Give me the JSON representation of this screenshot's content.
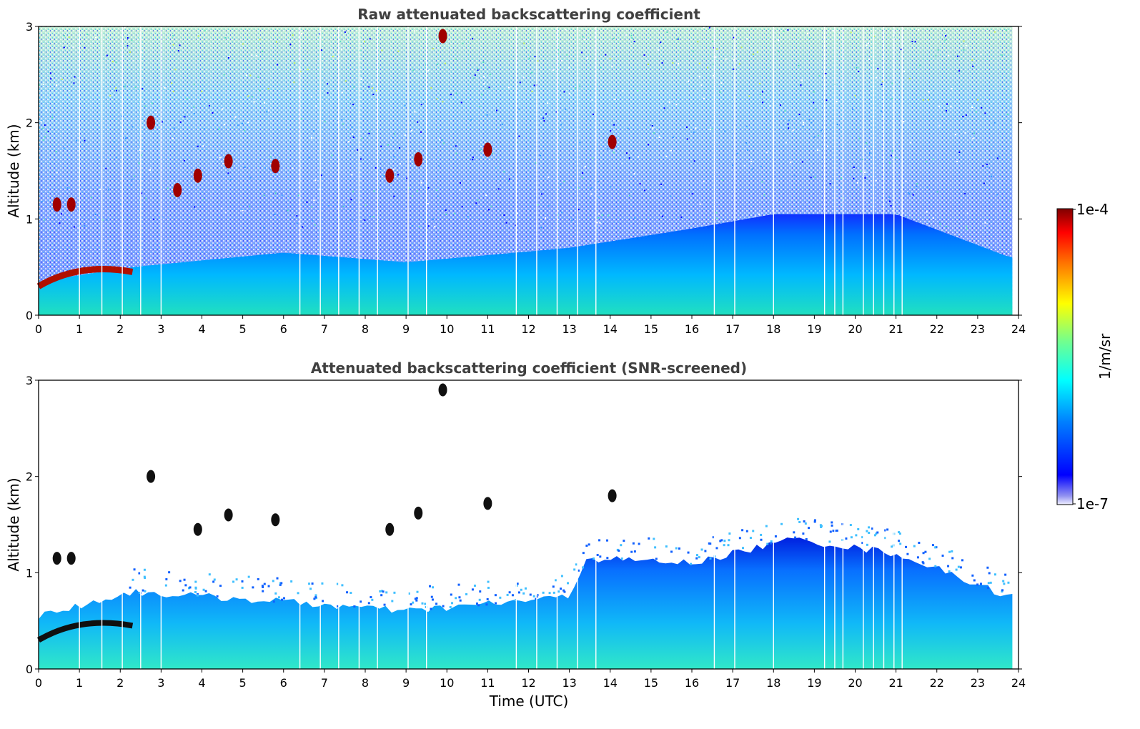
{
  "chart_data": [
    {
      "type": "heatmap",
      "title": "Raw attenuated backscattering coefficient",
      "xlabel": "",
      "ylabel": "Altitude (km)",
      "xlim": [
        0,
        24
      ],
      "ylim": [
        0,
        3
      ],
      "x_ticks": [
        "0",
        "1",
        "2",
        "3",
        "4",
        "5",
        "6",
        "7",
        "8",
        "9",
        "10",
        "11",
        "12",
        "13",
        "14",
        "15",
        "16",
        "17",
        "18",
        "19",
        "20",
        "21",
        "22",
        "23",
        "24"
      ],
      "y_ticks": [
        "0",
        "1",
        "2",
        "3"
      ],
      "data_end_time": 23.85,
      "boundary_layer_top_km": [
        {
          "t": 0,
          "h": 0.35
        },
        {
          "t": 2.3,
          "h": 0.5
        },
        {
          "t": 6,
          "h": 0.65
        },
        {
          "t": 9,
          "h": 0.55
        },
        {
          "t": 13,
          "h": 0.7
        },
        {
          "t": 16,
          "h": 0.9
        },
        {
          "t": 18,
          "h": 1.05
        },
        {
          "t": 21,
          "h": 1.05
        },
        {
          "t": 23.8,
          "h": 0.6
        }
      ],
      "clouds": [
        {
          "t": 0.45,
          "h": 1.15
        },
        {
          "t": 0.8,
          "h": 1.15
        },
        {
          "t": 2.75,
          "h": 2.0
        },
        {
          "t": 3.4,
          "h": 1.3
        },
        {
          "t": 3.9,
          "h": 1.45
        },
        {
          "t": 4.65,
          "h": 1.6
        },
        {
          "t": 5.8,
          "h": 1.55
        },
        {
          "t": 8.6,
          "h": 1.45
        },
        {
          "t": 9.3,
          "h": 1.62
        },
        {
          "t": 9.9,
          "h": 2.9
        },
        {
          "t": 11.0,
          "h": 1.72
        },
        {
          "t": 14.05,
          "h": 1.8
        }
      ],
      "colorbar_ref": "colorbar"
    },
    {
      "type": "heatmap",
      "title": "Attenuated backscattering coefficient (SNR-screened)",
      "xlabel": "Time (UTC)",
      "ylabel": "Altitude (km)",
      "xlim": [
        0,
        24
      ],
      "ylim": [
        0,
        3
      ],
      "x_ticks": [
        "0",
        "1",
        "2",
        "3",
        "4",
        "5",
        "6",
        "7",
        "8",
        "9",
        "10",
        "11",
        "12",
        "13",
        "14",
        "15",
        "16",
        "17",
        "18",
        "19",
        "20",
        "21",
        "22",
        "23",
        "24"
      ],
      "y_ticks": [
        "0",
        "1",
        "2",
        "3"
      ],
      "data_end_time": 23.85,
      "screened_top_km": [
        {
          "t": 0,
          "h": 0.55
        },
        {
          "t": 2.3,
          "h": 0.8
        },
        {
          "t": 6,
          "h": 0.7
        },
        {
          "t": 9,
          "h": 0.6
        },
        {
          "t": 13,
          "h": 0.75
        },
        {
          "t": 13.4,
          "h": 1.15
        },
        {
          "t": 16,
          "h": 1.1
        },
        {
          "t": 18.5,
          "h": 1.35
        },
        {
          "t": 21,
          "h": 1.2
        },
        {
          "t": 23.8,
          "h": 0.75
        }
      ],
      "clouds": [
        {
          "t": 0.45,
          "h": 1.15
        },
        {
          "t": 0.8,
          "h": 1.15
        },
        {
          "t": 2.75,
          "h": 2.0
        },
        {
          "t": 3.9,
          "h": 1.45
        },
        {
          "t": 4.65,
          "h": 1.6
        },
        {
          "t": 5.8,
          "h": 1.55
        },
        {
          "t": 8.6,
          "h": 1.45
        },
        {
          "t": 9.3,
          "h": 1.62
        },
        {
          "t": 9.9,
          "h": 2.9
        },
        {
          "t": 11.0,
          "h": 1.72
        },
        {
          "t": 14.05,
          "h": 1.8
        }
      ],
      "colorbar_ref": "colorbar"
    }
  ],
  "colorbar": {
    "label": "1/m/sr",
    "max_label": "1e-4",
    "min_label": "1e-7",
    "scale": "log",
    "colormap": "jet",
    "colors": [
      "#ffffff",
      "#0000ff",
      "#00ffff",
      "#7fff7f",
      "#ffff00",
      "#ff0000",
      "#800000"
    ]
  },
  "gap_times_utc": [
    1.0,
    1.55,
    2.05,
    2.5,
    3.0,
    6.4,
    6.9,
    7.35,
    7.85,
    8.3,
    9.05,
    9.5,
    11.7,
    12.2,
    12.7,
    13.2,
    13.65,
    16.55,
    17.05,
    18.0,
    19.25,
    19.5,
    19.7,
    20.2,
    20.45,
    20.7,
    20.95,
    21.15
  ]
}
